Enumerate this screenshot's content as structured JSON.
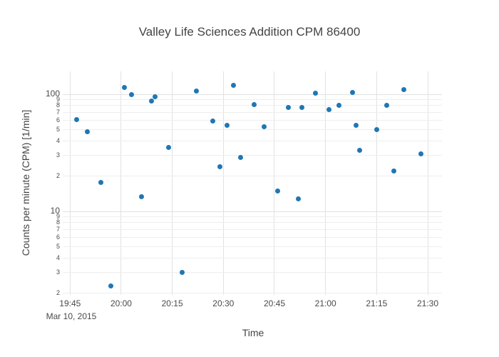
{
  "chart_data": {
    "type": "scatter",
    "title": "Valley Life Sciences Addition CPM 86400",
    "xlabel": "Time",
    "ylabel": "Counts per minute (CPM) [1/min]",
    "x_annotation": "Mar 10, 2015",
    "x_ticks": [
      "19:45",
      "20:00",
      "20:15",
      "20:30",
      "20:45",
      "21:00",
      "21:15",
      "21:30"
    ],
    "x_range": [
      "19:43",
      "21:34"
    ],
    "y_scale": "log",
    "y_range": [
      2,
      160
    ],
    "y_gridlines": [
      100,
      90,
      80,
      70,
      60,
      50,
      40,
      30,
      20,
      10,
      9,
      8,
      7,
      6,
      5,
      4,
      3,
      2
    ],
    "y_major_ticks": [
      100,
      10
    ],
    "grid": true,
    "legend": "none",
    "marker": {
      "color": "#1f77b4",
      "size": 7,
      "shape": "circle"
    },
    "colors": {
      "title": "#444444",
      "tick": "#4a4a4a",
      "grid_major": "#e2e2e2",
      "grid_minor": "#eeeeee",
      "background": "#ffffff"
    },
    "series": [
      {
        "name": "CPM",
        "points": [
          {
            "time": "19:47",
            "cpm": 61
          },
          {
            "time": "19:50",
            "cpm": 48
          },
          {
            "time": "19:54",
            "cpm": 17.6
          },
          {
            "time": "19:57",
            "cpm": 2.3
          },
          {
            "time": "20:01",
            "cpm": 115
          },
          {
            "time": "20:03",
            "cpm": 100
          },
          {
            "time": "20:06",
            "cpm": 13.4
          },
          {
            "time": "20:09",
            "cpm": 88
          },
          {
            "time": "20:10",
            "cpm": 95
          },
          {
            "time": "20:14",
            "cpm": 35
          },
          {
            "time": "20:18",
            "cpm": 3.0
          },
          {
            "time": "20:22",
            "cpm": 106
          },
          {
            "time": "20:27",
            "cpm": 59
          },
          {
            "time": "20:29",
            "cpm": 24
          },
          {
            "time": "20:31",
            "cpm": 54
          },
          {
            "time": "20:33",
            "cpm": 120
          },
          {
            "time": "20:35",
            "cpm": 29
          },
          {
            "time": "20:39",
            "cpm": 82
          },
          {
            "time": "20:42",
            "cpm": 53
          },
          {
            "time": "20:46",
            "cpm": 15
          },
          {
            "time": "20:49",
            "cpm": 77
          },
          {
            "time": "20:52",
            "cpm": 12.7
          },
          {
            "time": "20:53",
            "cpm": 77
          },
          {
            "time": "20:57",
            "cpm": 102
          },
          {
            "time": "21:01",
            "cpm": 74
          },
          {
            "time": "21:04",
            "cpm": 80
          },
          {
            "time": "21:08",
            "cpm": 104
          },
          {
            "time": "21:09",
            "cpm": 54
          },
          {
            "time": "21:10",
            "cpm": 33
          },
          {
            "time": "21:15",
            "cpm": 50
          },
          {
            "time": "21:18",
            "cpm": 81
          },
          {
            "time": "21:20",
            "cpm": 22
          },
          {
            "time": "21:23",
            "cpm": 110
          },
          {
            "time": "21:28",
            "cpm": 31
          }
        ]
      }
    ]
  }
}
